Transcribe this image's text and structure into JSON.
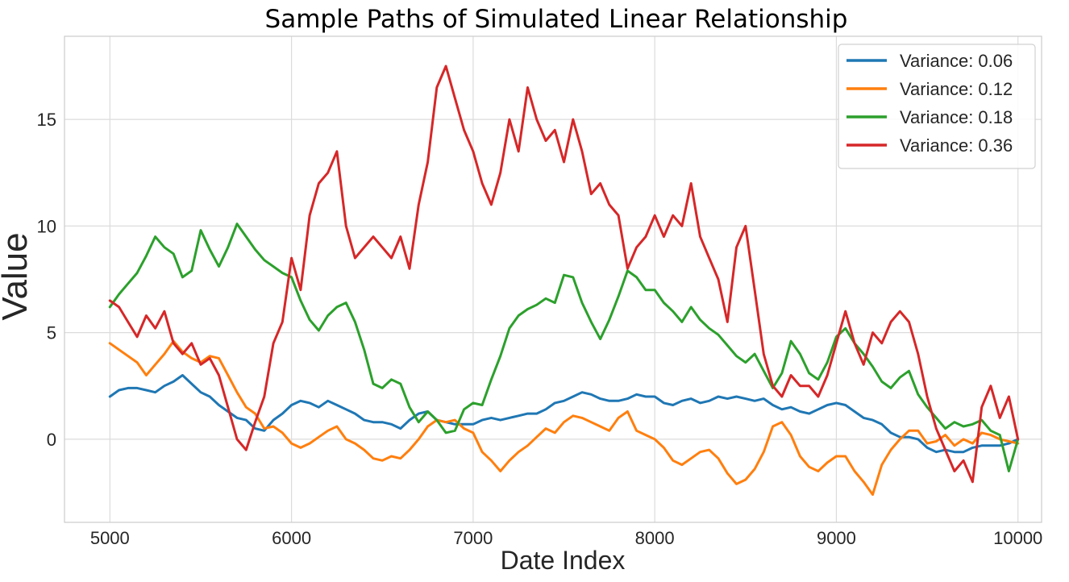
{
  "chart_data": {
    "type": "line",
    "title": "Sample Paths of Simulated Linear Relationship",
    "xlabel": "Date Index",
    "ylabel": "Value",
    "xlim": [
      4750,
      10130
    ],
    "ylim": [
      -3.9,
      18.9
    ],
    "xticks": [
      5000,
      6000,
      7000,
      8000,
      9000,
      10000
    ],
    "yticks": [
      0,
      5,
      10,
      15
    ],
    "grid": true,
    "legend_position": "top-right",
    "series": [
      {
        "name": "Variance: 0.06",
        "color": "#1f77b4",
        "x": [
          5000,
          5050,
          5100,
          5150,
          5200,
          5250,
          5300,
          5350,
          5400,
          5450,
          5500,
          5550,
          5600,
          5650,
          5700,
          5750,
          5800,
          5850,
          5900,
          5950,
          6000,
          6050,
          6100,
          6150,
          6200,
          6250,
          6300,
          6350,
          6400,
          6450,
          6500,
          6550,
          6600,
          6650,
          6700,
          6750,
          6800,
          6850,
          6900,
          6950,
          7000,
          7050,
          7100,
          7150,
          7200,
          7250,
          7300,
          7350,
          7400,
          7450,
          7500,
          7550,
          7600,
          7650,
          7700,
          7750,
          7800,
          7850,
          7900,
          7950,
          8000,
          8050,
          8100,
          8150,
          8200,
          8250,
          8300,
          8350,
          8400,
          8450,
          8500,
          8550,
          8600,
          8650,
          8700,
          8750,
          8800,
          8850,
          8900,
          8950,
          9000,
          9050,
          9100,
          9150,
          9200,
          9250,
          9300,
          9350,
          9400,
          9450,
          9500,
          9550,
          9600,
          9650,
          9700,
          9750,
          9800,
          9850,
          9900,
          9950,
          10000
        ],
        "y": [
          2.0,
          2.3,
          2.4,
          2.4,
          2.3,
          2.2,
          2.5,
          2.7,
          3.0,
          2.6,
          2.2,
          2.0,
          1.6,
          1.3,
          1.0,
          0.9,
          0.5,
          0.4,
          0.9,
          1.2,
          1.6,
          1.8,
          1.7,
          1.5,
          1.8,
          1.6,
          1.4,
          1.2,
          0.9,
          0.8,
          0.8,
          0.7,
          0.5,
          0.9,
          1.2,
          1.3,
          0.9,
          0.8,
          0.7,
          0.7,
          0.7,
          0.9,
          1.0,
          0.9,
          1.0,
          1.1,
          1.2,
          1.2,
          1.4,
          1.7,
          1.8,
          2.0,
          2.2,
          2.1,
          1.9,
          1.8,
          1.8,
          1.9,
          2.1,
          2.0,
          2.0,
          1.7,
          1.6,
          1.8,
          1.9,
          1.7,
          1.8,
          2.0,
          1.9,
          2.0,
          1.9,
          1.8,
          1.9,
          1.6,
          1.4,
          1.5,
          1.3,
          1.2,
          1.4,
          1.6,
          1.7,
          1.6,
          1.3,
          1.0,
          0.9,
          0.7,
          0.3,
          0.1,
          0.1,
          0.0,
          -0.4,
          -0.6,
          -0.5,
          -0.6,
          -0.6,
          -0.4,
          -0.3,
          -0.3,
          -0.3,
          -0.2,
          0.0
        ]
      },
      {
        "name": "Variance: 0.12",
        "color": "#ff7f0e",
        "x": [
          5000,
          5050,
          5100,
          5150,
          5200,
          5250,
          5300,
          5350,
          5400,
          5450,
          5500,
          5550,
          5600,
          5650,
          5700,
          5750,
          5800,
          5850,
          5900,
          5950,
          6000,
          6050,
          6100,
          6150,
          6200,
          6250,
          6300,
          6350,
          6400,
          6450,
          6500,
          6550,
          6600,
          6650,
          6700,
          6750,
          6800,
          6850,
          6900,
          6950,
          7000,
          7050,
          7100,
          7150,
          7200,
          7250,
          7300,
          7350,
          7400,
          7450,
          7500,
          7550,
          7600,
          7650,
          7700,
          7750,
          7800,
          7850,
          7900,
          7950,
          8000,
          8050,
          8100,
          8150,
          8200,
          8250,
          8300,
          8350,
          8400,
          8450,
          8500,
          8550,
          8600,
          8650,
          8700,
          8750,
          8800,
          8850,
          8900,
          8950,
          9000,
          9050,
          9100,
          9150,
          9200,
          9250,
          9300,
          9350,
          9400,
          9450,
          9500,
          9550,
          9600,
          9650,
          9700,
          9750,
          9800,
          9850,
          9900,
          9950,
          10000
        ],
        "y": [
          4.5,
          4.2,
          3.9,
          3.6,
          3.0,
          3.5,
          4.0,
          4.6,
          4.1,
          3.8,
          3.6,
          3.9,
          3.8,
          3.0,
          2.2,
          1.5,
          1.2,
          0.5,
          0.6,
          0.3,
          -0.2,
          -0.4,
          -0.2,
          0.1,
          0.4,
          0.6,
          0.0,
          -0.2,
          -0.5,
          -0.9,
          -1.0,
          -0.8,
          -0.9,
          -0.5,
          0.0,
          0.6,
          0.9,
          0.8,
          0.9,
          0.5,
          0.3,
          -0.6,
          -1.0,
          -1.5,
          -1.0,
          -0.6,
          -0.3,
          0.1,
          0.5,
          0.3,
          0.8,
          1.1,
          1.0,
          0.8,
          0.6,
          0.4,
          1.0,
          1.3,
          0.4,
          0.2,
          0.0,
          -0.4,
          -1.0,
          -1.2,
          -0.9,
          -0.6,
          -0.5,
          -0.9,
          -1.6,
          -2.1,
          -1.9,
          -1.4,
          -0.6,
          0.6,
          0.8,
          0.2,
          -0.8,
          -1.3,
          -1.5,
          -1.1,
          -0.8,
          -0.8,
          -1.5,
          -2.0,
          -2.6,
          -1.2,
          -0.5,
          0.0,
          0.4,
          0.4,
          -0.2,
          -0.1,
          0.2,
          -0.3,
          0.0,
          -0.2,
          0.3,
          0.2,
          0.0,
          -0.1,
          -0.2
        ]
      },
      {
        "name": "Variance: 0.18",
        "color": "#2ca02c",
        "x": [
          5000,
          5050,
          5100,
          5150,
          5200,
          5250,
          5300,
          5350,
          5400,
          5450,
          5500,
          5550,
          5600,
          5650,
          5700,
          5750,
          5800,
          5850,
          5900,
          5950,
          6000,
          6050,
          6100,
          6150,
          6200,
          6250,
          6300,
          6350,
          6400,
          6450,
          6500,
          6550,
          6600,
          6650,
          6700,
          6750,
          6800,
          6850,
          6900,
          6950,
          7000,
          7050,
          7100,
          7150,
          7200,
          7250,
          7300,
          7350,
          7400,
          7450,
          7500,
          7550,
          7600,
          7650,
          7700,
          7750,
          7800,
          7850,
          7900,
          7950,
          8000,
          8050,
          8100,
          8150,
          8200,
          8250,
          8300,
          8350,
          8400,
          8450,
          8500,
          8550,
          8600,
          8650,
          8700,
          8750,
          8800,
          8850,
          8900,
          8950,
          9000,
          9050,
          9100,
          9150,
          9200,
          9250,
          9300,
          9350,
          9400,
          9450,
          9500,
          9550,
          9600,
          9650,
          9700,
          9750,
          9800,
          9850,
          9900,
          9950,
          10000
        ],
        "y": [
          6.2,
          6.8,
          7.3,
          7.8,
          8.6,
          9.5,
          9.0,
          8.7,
          7.6,
          7.9,
          9.8,
          8.9,
          8.1,
          9.0,
          10.1,
          9.5,
          8.9,
          8.4,
          8.1,
          7.8,
          7.6,
          6.5,
          5.6,
          5.1,
          5.8,
          6.2,
          6.4,
          5.5,
          4.2,
          2.6,
          2.4,
          2.8,
          2.6,
          1.5,
          0.8,
          1.3,
          0.9,
          0.3,
          0.4,
          1.4,
          1.7,
          1.6,
          2.8,
          3.9,
          5.2,
          5.8,
          6.1,
          6.3,
          6.6,
          6.4,
          7.7,
          7.6,
          6.4,
          5.5,
          4.7,
          5.6,
          6.7,
          7.9,
          7.6,
          7.0,
          7.0,
          6.4,
          6.0,
          5.5,
          6.2,
          5.6,
          5.2,
          4.9,
          4.4,
          3.9,
          3.6,
          4.0,
          3.2,
          2.4,
          3.1,
          4.6,
          4.0,
          3.1,
          2.8,
          3.6,
          4.8,
          5.2,
          4.5,
          4.0,
          3.4,
          2.7,
          2.4,
          2.9,
          3.2,
          2.1,
          1.5,
          1.0,
          0.5,
          0.8,
          0.6,
          0.7,
          0.9,
          0.4,
          0.2,
          -1.5,
          0.0
        ]
      },
      {
        "name": "Variance: 0.36",
        "color": "#d62728",
        "x": [
          5000,
          5050,
          5100,
          5150,
          5200,
          5250,
          5300,
          5350,
          5400,
          5450,
          5500,
          5550,
          5600,
          5650,
          5700,
          5750,
          5800,
          5850,
          5900,
          5950,
          6000,
          6050,
          6100,
          6150,
          6200,
          6250,
          6300,
          6350,
          6400,
          6450,
          6500,
          6550,
          6600,
          6650,
          6700,
          6750,
          6800,
          6850,
          6900,
          6950,
          7000,
          7050,
          7100,
          7150,
          7200,
          7250,
          7300,
          7350,
          7400,
          7450,
          7500,
          7550,
          7600,
          7650,
          7700,
          7750,
          7800,
          7850,
          7900,
          7950,
          8000,
          8050,
          8100,
          8150,
          8200,
          8250,
          8300,
          8350,
          8400,
          8450,
          8500,
          8550,
          8600,
          8650,
          8700,
          8750,
          8800,
          8850,
          8900,
          8950,
          9000,
          9050,
          9100,
          9150,
          9200,
          9250,
          9300,
          9350,
          9400,
          9450,
          9500,
          9550,
          9600,
          9650,
          9700,
          9750,
          9800,
          9850,
          9900,
          9950,
          10000
        ],
        "y": [
          6.5,
          6.2,
          5.5,
          4.8,
          5.8,
          5.2,
          6.0,
          4.5,
          4.0,
          4.5,
          3.5,
          3.8,
          3.0,
          1.5,
          0.0,
          -0.5,
          0.8,
          2.0,
          4.5,
          5.5,
          8.5,
          7.0,
          10.5,
          12.0,
          12.5,
          13.5,
          10.0,
          8.5,
          9.0,
          9.5,
          9.0,
          8.5,
          9.5,
          8.0,
          11.0,
          13.0,
          16.5,
          17.5,
          16.0,
          14.5,
          13.5,
          12.0,
          11.0,
          12.5,
          15.0,
          13.5,
          16.5,
          15.0,
          14.0,
          14.5,
          13.0,
          15.0,
          13.5,
          11.5,
          12.0,
          11.0,
          10.5,
          8.0,
          9.0,
          9.5,
          10.5,
          9.5,
          10.5,
          10.0,
          12.0,
          9.5,
          8.5,
          7.5,
          5.5,
          9.0,
          10.0,
          7.0,
          4.0,
          2.5,
          2.0,
          3.0,
          2.5,
          2.5,
          2.0,
          3.0,
          4.5,
          6.0,
          4.5,
          3.5,
          5.0,
          4.5,
          5.5,
          6.0,
          5.5,
          4.0,
          2.0,
          0.5,
          -0.5,
          -1.5,
          -1.0,
          -2.0,
          1.5,
          2.5,
          1.0,
          2.0,
          0.0
        ]
      }
    ]
  }
}
